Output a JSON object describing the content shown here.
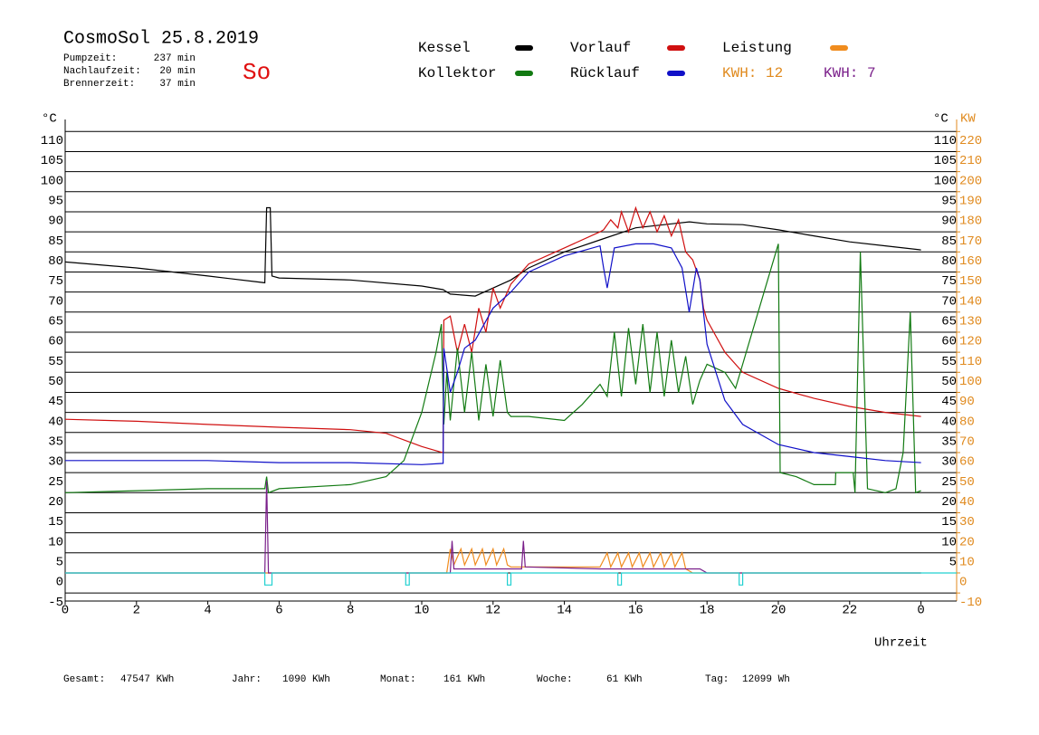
{
  "header": {
    "title": "CosmoSol 25.8.2019",
    "day": "So",
    "info": [
      {
        "label": "Pumpzeit:",
        "value": "237 min"
      },
      {
        "label": "Nachlaufzeit:",
        "value": "20 min"
      },
      {
        "label": "Brennerzeit:",
        "value": "37 min"
      }
    ]
  },
  "chart_data": {
    "type": "line",
    "x_label": "Uhrzeit",
    "y_unit": "°C",
    "y_unit_right": "°C",
    "y2_unit": "KW",
    "xlim": [
      0,
      25
    ],
    "xticks": [
      0,
      2,
      4,
      6,
      8,
      10,
      12,
      14,
      16,
      18,
      20,
      22,
      {
        "value": 24,
        "label": "0"
      }
    ],
    "ylim": [
      -7,
      113
    ],
    "yticks": [
      -5,
      0,
      5,
      10,
      15,
      20,
      25,
      30,
      35,
      40,
      45,
      50,
      55,
      60,
      65,
      70,
      75,
      80,
      85,
      90,
      95,
      100,
      105,
      110
    ],
    "yticks_right": [
      5,
      10,
      15,
      20,
      25,
      30,
      35,
      40,
      45,
      50,
      55,
      60,
      65,
      70,
      75,
      80,
      85,
      90,
      95,
      100,
      105,
      110
    ],
    "y2lim": [
      -14,
      226
    ],
    "y2ticks": [
      -10,
      0,
      10,
      20,
      30,
      40,
      50,
      60,
      70,
      80,
      90,
      100,
      110,
      120,
      130,
      140,
      150,
      160,
      170,
      180,
      190,
      200,
      210,
      220
    ],
    "y2_color": "#e08a1e",
    "grid": true,
    "annotations": [
      {
        "text": "KWH: 12",
        "color": "#e08a1e"
      },
      {
        "text": "KWH: 7",
        "color": "#7a1f8a"
      }
    ],
    "series": [
      {
        "name": "Kessel",
        "color": "#000000",
        "x": [
          0,
          2,
          4,
          5.6,
          5.65,
          5.75,
          5.8,
          6,
          8,
          10,
          10.6,
          10.8,
          11.5,
          12,
          12.5,
          13,
          14,
          15,
          16,
          17,
          17.5,
          18,
          19,
          20,
          21,
          22,
          23,
          24
        ],
        "values": [
          77.5,
          76,
          74,
          72.3,
          91,
          91,
          74,
          73.5,
          73,
          71.5,
          70.6,
          69.5,
          69,
          71,
          73,
          76,
          80,
          83,
          86,
          87,
          87.5,
          87,
          86.8,
          85.5,
          84,
          82.5,
          81.5,
          80.5
        ]
      },
      {
        "name": "Vorlauf",
        "color": "#d01010",
        "x": [
          0,
          2,
          4,
          6,
          8,
          9,
          10,
          10.5,
          10.6,
          10.62,
          10.8,
          11,
          11.2,
          11.4,
          11.6,
          11.8,
          12,
          12.2,
          12.5,
          13,
          14,
          15,
          15.1,
          15.3,
          15.5,
          15.6,
          15.8,
          16,
          16.2,
          16.4,
          16.6,
          16.8,
          17,
          17.2,
          17.4,
          17.6,
          17.8,
          17.9,
          18,
          18.5,
          19,
          20,
          21,
          22,
          23,
          24
        ],
        "values": [
          38.3,
          37.8,
          37,
          36.3,
          35.7,
          34.8,
          31.5,
          30.2,
          30,
          63,
          64,
          55,
          62,
          55,
          66,
          60,
          71,
          66,
          72,
          77,
          81,
          85,
          85.5,
          88,
          86,
          90,
          85,
          91,
          86,
          90,
          85,
          89,
          84,
          88,
          80,
          78,
          73,
          66,
          63,
          55,
          50,
          46,
          43.5,
          41.5,
          40,
          39
        ]
      },
      {
        "name": "Leistung",
        "color": "#f08c1e",
        "axis": "y2",
        "x": [
          0,
          10.7,
          10.8,
          10.9,
          11.1,
          11.2,
          11.4,
          11.5,
          11.7,
          11.8,
          12,
          12.1,
          12.3,
          12.4,
          12.5,
          15,
          15.2,
          15.3,
          15.5,
          15.6,
          15.8,
          15.9,
          16.1,
          16.2,
          16.4,
          16.5,
          16.7,
          16.8,
          17,
          17.1,
          17.3,
          17.4,
          17.6,
          24
        ],
        "values": [
          0,
          0,
          12,
          4,
          12,
          4,
          12,
          4,
          12,
          4,
          12,
          4,
          12,
          4,
          3,
          3,
          10,
          3,
          10,
          3,
          10,
          3,
          10,
          3,
          10,
          3,
          10,
          3,
          10,
          3,
          10,
          2,
          0,
          0
        ]
      },
      {
        "name": "Kollektor",
        "color": "#127a12",
        "x": [
          0,
          2,
          4,
          5.6,
          5.65,
          5.7,
          6,
          8,
          9,
          9.5,
          10,
          10.4,
          10.55,
          10.62,
          10.7,
          10.8,
          11,
          11.2,
          11.4,
          11.6,
          11.8,
          12,
          12.2,
          12.4,
          12.5,
          13,
          14,
          14.5,
          15,
          15.2,
          15.4,
          15.6,
          15.8,
          16,
          16.2,
          16.4,
          16.6,
          16.8,
          17,
          17.2,
          17.4,
          17.6,
          17.8,
          18,
          18.5,
          18.8,
          20,
          20.05,
          20.5,
          21,
          21.6,
          21.61,
          22.1,
          22.15,
          22.3,
          22.5,
          23,
          23.3,
          23.5,
          23.7,
          23.85,
          24
        ],
        "values": [
          20,
          20.5,
          21,
          21,
          24,
          20,
          21,
          22,
          24,
          28,
          40,
          55,
          62,
          37,
          50,
          38,
          56,
          40,
          55,
          38,
          52,
          39,
          53,
          40,
          39,
          39,
          38,
          42,
          47,
          44,
          60,
          44,
          61,
          47,
          62,
          45,
          60,
          44,
          58,
          45,
          54,
          42,
          48,
          52,
          50,
          46,
          82,
          25,
          24,
          22,
          22,
          25,
          25,
          20,
          80,
          21,
          20,
          21,
          30,
          65,
          20,
          20.5
        ]
      },
      {
        "name": "Rücklauf",
        "color": "#1010c8",
        "x": [
          0,
          4,
          6,
          8,
          10,
          10.6,
          10.62,
          10.8,
          11,
          11.2,
          11.5,
          12,
          12.5,
          13,
          14,
          15,
          15.1,
          15.2,
          15.4,
          16,
          16.5,
          17,
          17.3,
          17.5,
          17.7,
          17.8,
          18,
          18.5,
          19,
          20,
          21,
          22,
          23,
          24
        ],
        "values": [
          28,
          28,
          27.5,
          27.5,
          27,
          27.3,
          56,
          45,
          50,
          56,
          58,
          66,
          70,
          75,
          79,
          81.5,
          76,
          71,
          81,
          82,
          82,
          81,
          76,
          65,
          76,
          73,
          57,
          43,
          37,
          32,
          30,
          29,
          28,
          27.5
        ]
      },
      {
        "color": "#7a1f8a",
        "axis": "y2",
        "x": [
          0,
          5.6,
          5.65,
          5.7,
          10.8,
          10.85,
          10.9,
          12.8,
          12.85,
          12.9,
          15,
          17.8,
          18,
          24
        ],
        "values": [
          0,
          0,
          46,
          0,
          0,
          16,
          2,
          2,
          16,
          3,
          2,
          2,
          0,
          0
        ]
      },
      {
        "color": "#20d0d0",
        "x": [
          0,
          5.6,
          5.6,
          5.8,
          5.8,
          9.55,
          9.55,
          9.65,
          9.65,
          12.4,
          12.4,
          12.5,
          12.5,
          15.5,
          15.5,
          15.6,
          15.6,
          18.9,
          18.9,
          19,
          19,
          25
        ],
        "values": [
          0,
          0,
          -3,
          -3,
          0,
          0,
          -3,
          -3,
          0,
          0,
          -3,
          -3,
          0,
          0,
          -3,
          -3,
          0,
          0,
          -3,
          -3,
          0,
          0
        ]
      }
    ]
  },
  "footer": [
    {
      "label": "Gesamt:",
      "value": "47547 KWh"
    },
    {
      "label": "Jahr:",
      "value": "1090 KWh"
    },
    {
      "label": "Monat:",
      "value": "161 KWh"
    },
    {
      "label": "Woche:",
      "value": "61 KWh"
    },
    {
      "label": "Tag:",
      "value": "12099 Wh"
    }
  ]
}
